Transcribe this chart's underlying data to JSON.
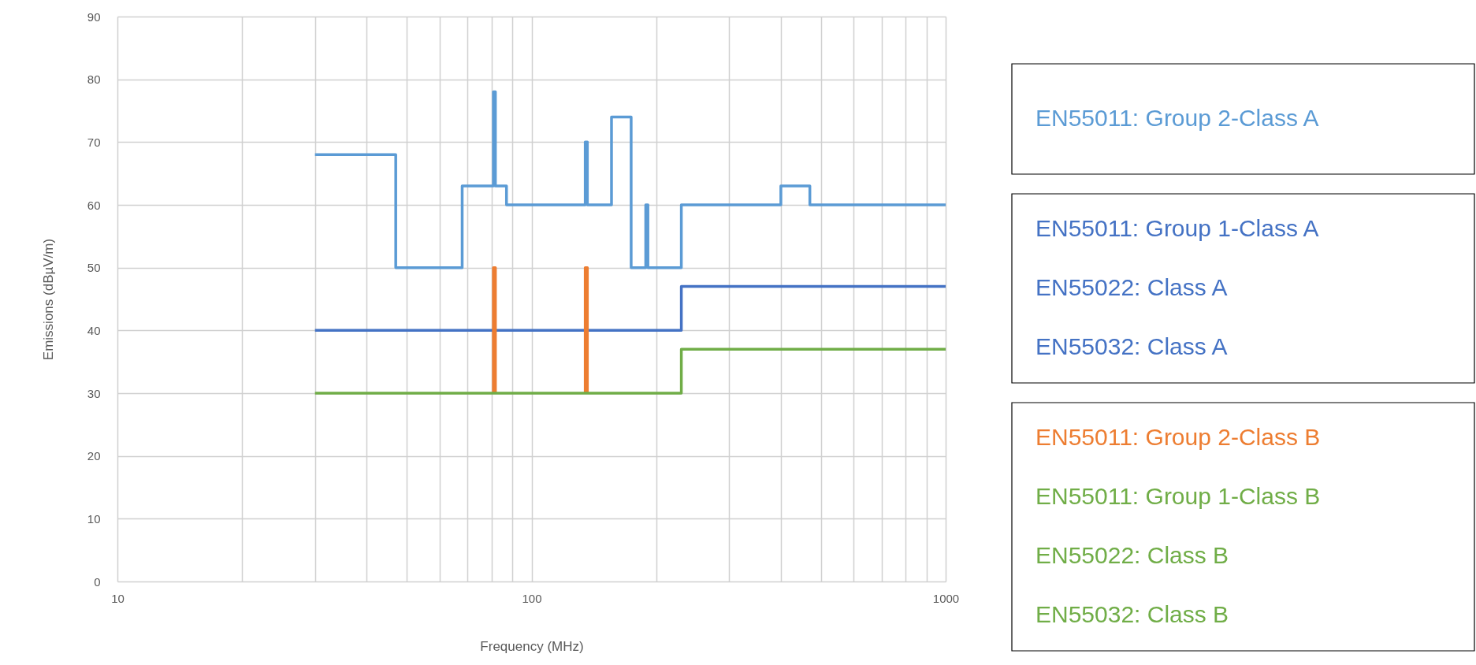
{
  "chart_data": {
    "type": "step",
    "xlabel": "Frequency (MHz)",
    "ylabel": "Emissions (dBµV/m)",
    "log": "x",
    "grid": true,
    "legend": "right",
    "line_style": "solid",
    "marker": "none",
    "xlim": [
      10,
      1000
    ],
    "ylim": [
      0,
      90
    ],
    "xticks": [
      10,
      {
        "value": 20,
        "label": null
      },
      {
        "value": 30,
        "label": null
      },
      {
        "value": 40,
        "label": null
      },
      {
        "value": 50,
        "label": null
      },
      {
        "value": 60,
        "label": null
      },
      {
        "value": 70,
        "label": null
      },
      {
        "value": 80,
        "label": null
      },
      {
        "value": 90,
        "label": null
      },
      100,
      {
        "value": 200,
        "label": null
      },
      {
        "value": 300,
        "label": null
      },
      {
        "value": 400,
        "label": null
      },
      {
        "value": 500,
        "label": null
      },
      {
        "value": 600,
        "label": null
      },
      {
        "value": 700,
        "label": null
      },
      {
        "value": 800,
        "label": null
      },
      {
        "value": 900,
        "label": null
      },
      1000
    ],
    "yticks": [
      0,
      10,
      20,
      30,
      40,
      50,
      60,
      70,
      80,
      90
    ],
    "series": [
      {
        "name": "EN55011: Group 2-Class A",
        "color": "#5b9bd5",
        "x": [
          30,
          47,
          47,
          68,
          68,
          80.9,
          80.9,
          81.8,
          81.8,
          87,
          87,
          134.8,
          134.8,
          136.4,
          136.4,
          156,
          156,
          174,
          174,
          188.7,
          188.7,
          191,
          191,
          230,
          230,
          400,
          400,
          470,
          470,
          1000
        ],
        "values": [
          68,
          68,
          50,
          50,
          63,
          63,
          78,
          78,
          63,
          63,
          60,
          60,
          70,
          70,
          60,
          60,
          74,
          74,
          50,
          50,
          60,
          60,
          50,
          50,
          60,
          60,
          63,
          63,
          60,
          60
        ]
      },
      {
        "name": "EN55011: Group 1-Class A\nEN55022: Class A\nEN55032: Class A",
        "color": "#4472c4",
        "x": [
          30,
          230,
          230,
          1000
        ],
        "values": [
          40,
          40,
          47,
          47
        ]
      },
      {
        "name": "EN55011: Group 2-Class B",
        "color": "#ed7d31",
        "x": [
          80.9,
          80.9,
          81.8,
          81.8,
          100,
          134.8,
          134.8,
          136.4,
          136.4
        ],
        "values": [
          30,
          50,
          50,
          30,
          null,
          30,
          50,
          50,
          30
        ]
      },
      {
        "name": "EN55011: Group 1-Class B\nEN55022: Class B\nEN55032: Class B",
        "color": "#70ad47",
        "x": [
          30,
          230,
          230,
          1000
        ],
        "values": [
          30,
          30,
          37,
          37
        ]
      }
    ]
  }
}
